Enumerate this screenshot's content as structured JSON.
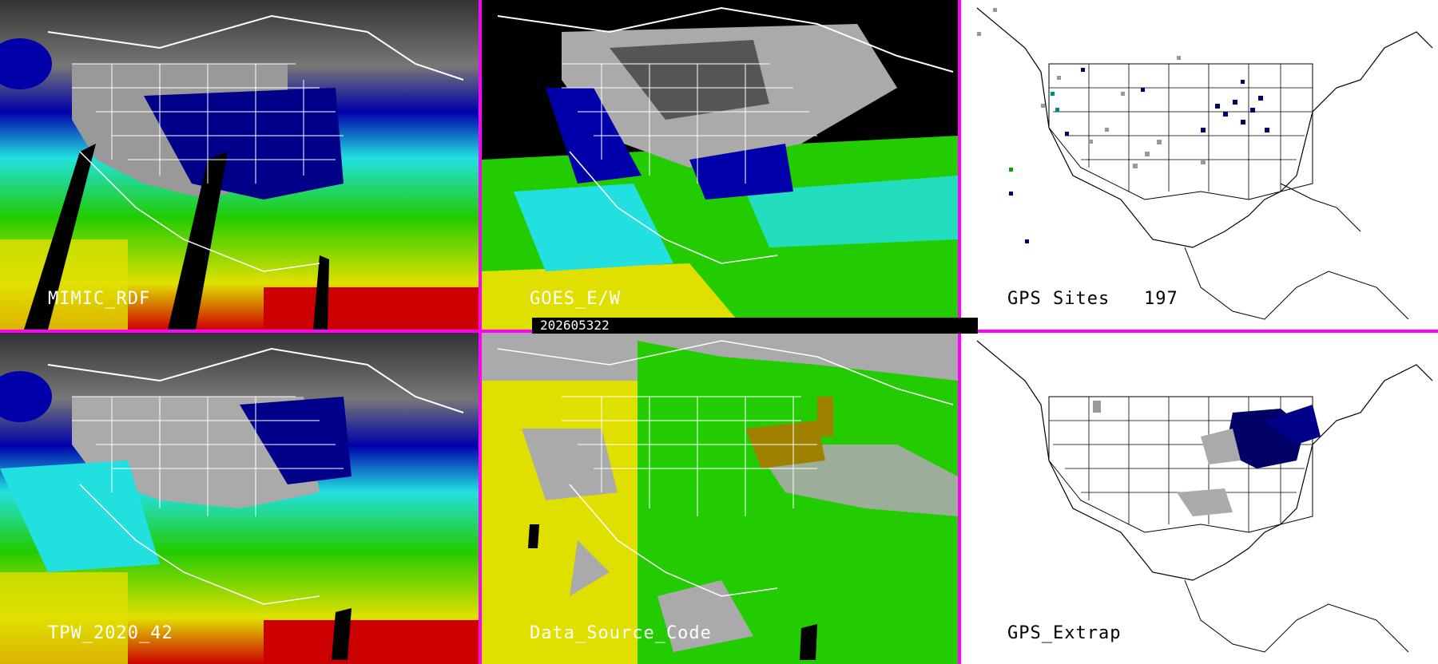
{
  "date_stamp": "202605322",
  "panels": [
    {
      "id": "mimic",
      "label": "MIMIC_RDF"
    },
    {
      "id": "goes",
      "label": "GOES_E/W"
    },
    {
      "id": "gps-sites",
      "label": "GPS Sites",
      "count": "197"
    },
    {
      "id": "tpw",
      "label": "TPW_2020_42"
    },
    {
      "id": "source",
      "label": "Data_Source_Code"
    },
    {
      "id": "gps-extrap",
      "label": "GPS_Extrap"
    }
  ],
  "colors": {
    "separator": "#ff00ff",
    "ocean_red": "#cc0000",
    "ocean_yellow": "#e0e000",
    "ocean_green": "#22cc00",
    "ocean_cyan": "#22e0e0",
    "land_blue": "#000088",
    "gray_land": "#909090",
    "source_yellow": "#e0e000",
    "source_green": "#22cc00",
    "source_gray": "#aaaaaa",
    "source_olive": "#a08000",
    "gps_dark_blue": "#000066"
  }
}
